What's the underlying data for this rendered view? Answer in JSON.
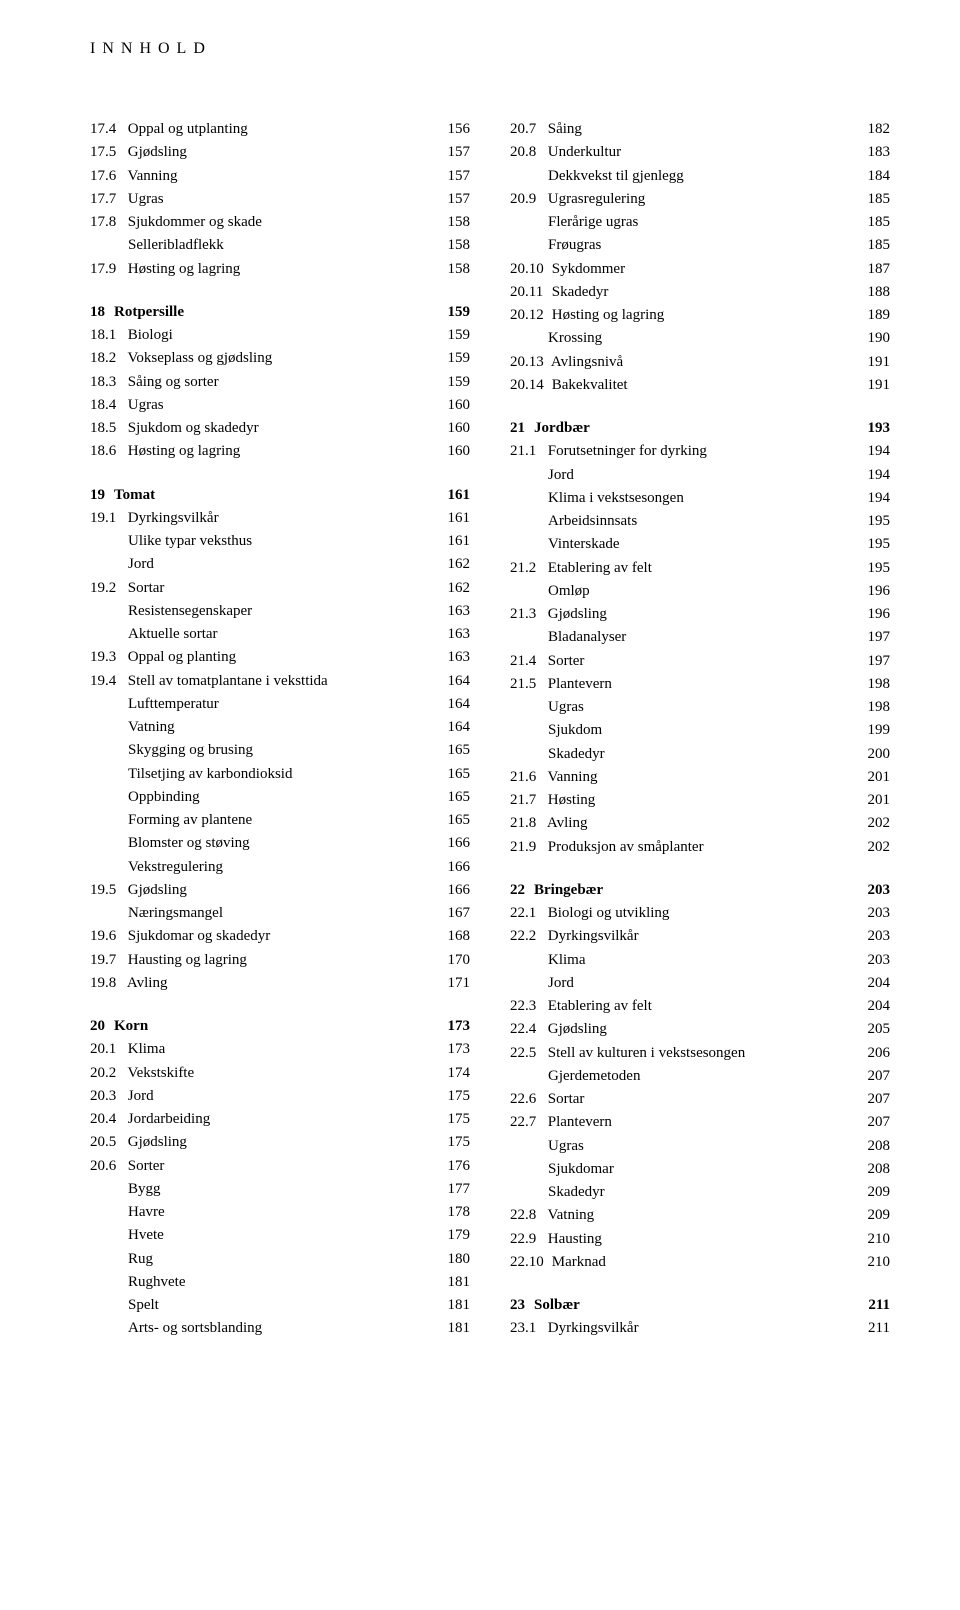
{
  "header": "INNHOLD",
  "left": [
    {
      "type": "section",
      "num": "17.4",
      "label": "Oppal og utplanting",
      "page": "156",
      "first": true
    },
    {
      "type": "section",
      "num": "17.5",
      "label": "Gjødsling",
      "page": "157"
    },
    {
      "type": "section",
      "num": "17.6",
      "label": "Vanning",
      "page": "157"
    },
    {
      "type": "section",
      "num": "17.7",
      "label": "Ugras",
      "page": "157"
    },
    {
      "type": "section",
      "num": "17.8",
      "label": "Sjukdommer og skade",
      "page": "158"
    },
    {
      "type": "sub",
      "label": "Selleribladflekk",
      "page": "158"
    },
    {
      "type": "section",
      "num": "17.9",
      "label": "Høsting og lagring",
      "page": "158"
    },
    {
      "type": "chapter",
      "num": "18",
      "label": "Rotpersille",
      "page": "159"
    },
    {
      "type": "section",
      "num": "18.1",
      "label": "Biologi",
      "page": "159"
    },
    {
      "type": "section",
      "num": "18.2",
      "label": "Vokseplass og gjødsling",
      "page": "159"
    },
    {
      "type": "section",
      "num": "18.3",
      "label": "Såing og sorter",
      "page": "159"
    },
    {
      "type": "section",
      "num": "18.4",
      "label": "Ugras",
      "page": "160"
    },
    {
      "type": "section",
      "num": "18.5",
      "label": "Sjukdom og skadedyr",
      "page": "160"
    },
    {
      "type": "section",
      "num": "18.6",
      "label": "Høsting og lagring",
      "page": "160"
    },
    {
      "type": "chapter",
      "num": "19",
      "label": "Tomat",
      "page": "161"
    },
    {
      "type": "section",
      "num": "19.1",
      "label": "Dyrkingsvilkår",
      "page": "161"
    },
    {
      "type": "sub",
      "label": "Ulike typar veksthus",
      "page": "161"
    },
    {
      "type": "sub",
      "label": "Jord",
      "page": "162"
    },
    {
      "type": "section",
      "num": "19.2",
      "label": "Sortar",
      "page": "162"
    },
    {
      "type": "sub",
      "label": "Resistensegenskaper",
      "page": "163"
    },
    {
      "type": "sub",
      "label": "Aktuelle sortar",
      "page": "163"
    },
    {
      "type": "section",
      "num": "19.3",
      "label": "Oppal og planting",
      "page": "163"
    },
    {
      "type": "section",
      "num": "19.4",
      "label": "Stell av tomatplantane i veksttida",
      "page": "164"
    },
    {
      "type": "sub",
      "label": "Lufttemperatur",
      "page": "164"
    },
    {
      "type": "sub",
      "label": "Vatning",
      "page": "164"
    },
    {
      "type": "sub",
      "label": "Skygging og brusing",
      "page": "165"
    },
    {
      "type": "sub",
      "label": "Tilsetjing av karbondioksid",
      "page": "165"
    },
    {
      "type": "sub",
      "label": "Oppbinding",
      "page": "165"
    },
    {
      "type": "sub",
      "label": "Forming av plantene",
      "page": "165"
    },
    {
      "type": "sub",
      "label": "Blomster og støving",
      "page": "166"
    },
    {
      "type": "sub",
      "label": "Vekstregulering",
      "page": "166"
    },
    {
      "type": "section",
      "num": "19.5",
      "label": "Gjødsling",
      "page": "166"
    },
    {
      "type": "sub",
      "label": "Næringsmangel",
      "page": "167"
    },
    {
      "type": "section",
      "num": "19.6",
      "label": "Sjukdomar og skadedyr",
      "page": "168"
    },
    {
      "type": "section",
      "num": "19.7",
      "label": "Hausting og lagring",
      "page": "170"
    },
    {
      "type": "section",
      "num": "19.8",
      "label": "Avling",
      "page": "171"
    },
    {
      "type": "chapter",
      "num": "20",
      "label": "Korn",
      "page": "173"
    },
    {
      "type": "section",
      "num": "20.1",
      "label": "Klima",
      "page": "173"
    },
    {
      "type": "section",
      "num": "20.2",
      "label": "Vekstskifte",
      "page": "174"
    },
    {
      "type": "section",
      "num": "20.3",
      "label": "Jord",
      "page": "175"
    },
    {
      "type": "section",
      "num": "20.4",
      "label": "Jordarbeiding",
      "page": "175"
    },
    {
      "type": "section",
      "num": "20.5",
      "label": "Gjødsling",
      "page": "175"
    },
    {
      "type": "section",
      "num": "20.6",
      "label": "Sorter",
      "page": "176"
    },
    {
      "type": "sub",
      "label": "Bygg",
      "page": "177"
    },
    {
      "type": "sub",
      "label": "Havre",
      "page": "178"
    },
    {
      "type": "sub",
      "label": "Hvete",
      "page": "179"
    },
    {
      "type": "sub",
      "label": "Rug",
      "page": "180"
    },
    {
      "type": "sub",
      "label": "Rughvete",
      "page": "181"
    },
    {
      "type": "sub",
      "label": "Spelt",
      "page": "181"
    },
    {
      "type": "sub",
      "label": "Arts- og sortsblanding",
      "page": "181"
    }
  ],
  "right": [
    {
      "type": "section",
      "num": "20.7",
      "label": "Såing",
      "page": "182",
      "first": true
    },
    {
      "type": "section",
      "num": "20.8",
      "label": "Underkultur",
      "page": "183"
    },
    {
      "type": "sub",
      "label": "Dekkvekst til gjenlegg",
      "page": "184"
    },
    {
      "type": "section",
      "num": "20.9",
      "label": "Ugrasregulering",
      "page": "185"
    },
    {
      "type": "sub",
      "label": "Flerårige ugras",
      "page": "185"
    },
    {
      "type": "sub",
      "label": "Frøugras",
      "page": "185"
    },
    {
      "type": "section",
      "num": "20.10",
      "label": "Sykdommer",
      "page": "187",
      "wide": true
    },
    {
      "type": "section",
      "num": "20.11",
      "label": "Skadedyr",
      "page": "188",
      "wide": true
    },
    {
      "type": "section",
      "num": "20.12",
      "label": "Høsting og lagring",
      "page": "189",
      "wide": true
    },
    {
      "type": "sub",
      "label": "Krossing",
      "page": "190"
    },
    {
      "type": "section",
      "num": "20.13",
      "label": "Avlingsnivå",
      "page": "191",
      "wide": true
    },
    {
      "type": "section",
      "num": "20.14",
      "label": "Bakekvalitet",
      "page": "191",
      "wide": true
    },
    {
      "type": "chapter",
      "num": "21",
      "label": "Jordbær",
      "page": "193"
    },
    {
      "type": "section",
      "num": "21.1",
      "label": "Forutsetninger for dyrking",
      "page": "194"
    },
    {
      "type": "sub",
      "label": "Jord",
      "page": "194"
    },
    {
      "type": "sub",
      "label": "Klima i vekstsesongen",
      "page": "194"
    },
    {
      "type": "sub",
      "label": "Arbeidsinnsats",
      "page": "195"
    },
    {
      "type": "sub",
      "label": "Vinterskade",
      "page": "195"
    },
    {
      "type": "section",
      "num": "21.2",
      "label": "Etablering av felt",
      "page": "195"
    },
    {
      "type": "sub",
      "label": "Omløp",
      "page": "196"
    },
    {
      "type": "section",
      "num": "21.3",
      "label": "Gjødsling",
      "page": "196"
    },
    {
      "type": "sub",
      "label": "Bladanalyser",
      "page": "197"
    },
    {
      "type": "section",
      "num": "21.4",
      "label": "Sorter",
      "page": "197"
    },
    {
      "type": "section",
      "num": "21.5",
      "label": "Plantevern",
      "page": "198"
    },
    {
      "type": "sub",
      "label": "Ugras",
      "page": "198"
    },
    {
      "type": "sub",
      "label": "Sjukdom",
      "page": "199"
    },
    {
      "type": "sub",
      "label": "Skadedyr",
      "page": "200"
    },
    {
      "type": "section",
      "num": "21.6",
      "label": "Vanning",
      "page": "201"
    },
    {
      "type": "section",
      "num": "21.7",
      "label": "Høsting",
      "page": "201"
    },
    {
      "type": "section",
      "num": "21.8",
      "label": "Avling",
      "page": "202"
    },
    {
      "type": "section",
      "num": "21.9",
      "label": "Produksjon av småplanter",
      "page": "202"
    },
    {
      "type": "chapter",
      "num": "22",
      "label": "Bringebær",
      "page": "203"
    },
    {
      "type": "section",
      "num": "22.1",
      "label": "Biologi og utvikling",
      "page": "203"
    },
    {
      "type": "section",
      "num": "22.2",
      "label": "Dyrkingsvilkår",
      "page": "203"
    },
    {
      "type": "sub",
      "label": "Klima",
      "page": "203"
    },
    {
      "type": "sub",
      "label": "Jord",
      "page": "204"
    },
    {
      "type": "section",
      "num": "22.3",
      "label": "Etablering av felt",
      "page": "204"
    },
    {
      "type": "section",
      "num": "22.4",
      "label": "Gjødsling",
      "page": "205"
    },
    {
      "type": "section",
      "num": "22.5",
      "label": "Stell av kulturen i vekstsesongen",
      "page": "206"
    },
    {
      "type": "sub",
      "label": "Gjerdemetoden",
      "page": "207"
    },
    {
      "type": "section",
      "num": "22.6",
      "label": "Sortar",
      "page": "207"
    },
    {
      "type": "section",
      "num": "22.7",
      "label": "Plantevern",
      "page": "207"
    },
    {
      "type": "sub",
      "label": "Ugras",
      "page": "208"
    },
    {
      "type": "sub",
      "label": "Sjukdomar",
      "page": "208"
    },
    {
      "type": "sub",
      "label": "Skadedyr",
      "page": "209"
    },
    {
      "type": "section",
      "num": "22.8",
      "label": "Vatning",
      "page": "209"
    },
    {
      "type": "section",
      "num": "22.9",
      "label": "Hausting",
      "page": "210"
    },
    {
      "type": "section",
      "num": "22.10",
      "label": "Marknad",
      "page": "210",
      "wide": true
    },
    {
      "type": "chapter",
      "num": "23",
      "label": "Solbær",
      "page": "211"
    },
    {
      "type": "section",
      "num": "23.1",
      "label": "Dyrkingsvilkår",
      "page": "211"
    }
  ]
}
